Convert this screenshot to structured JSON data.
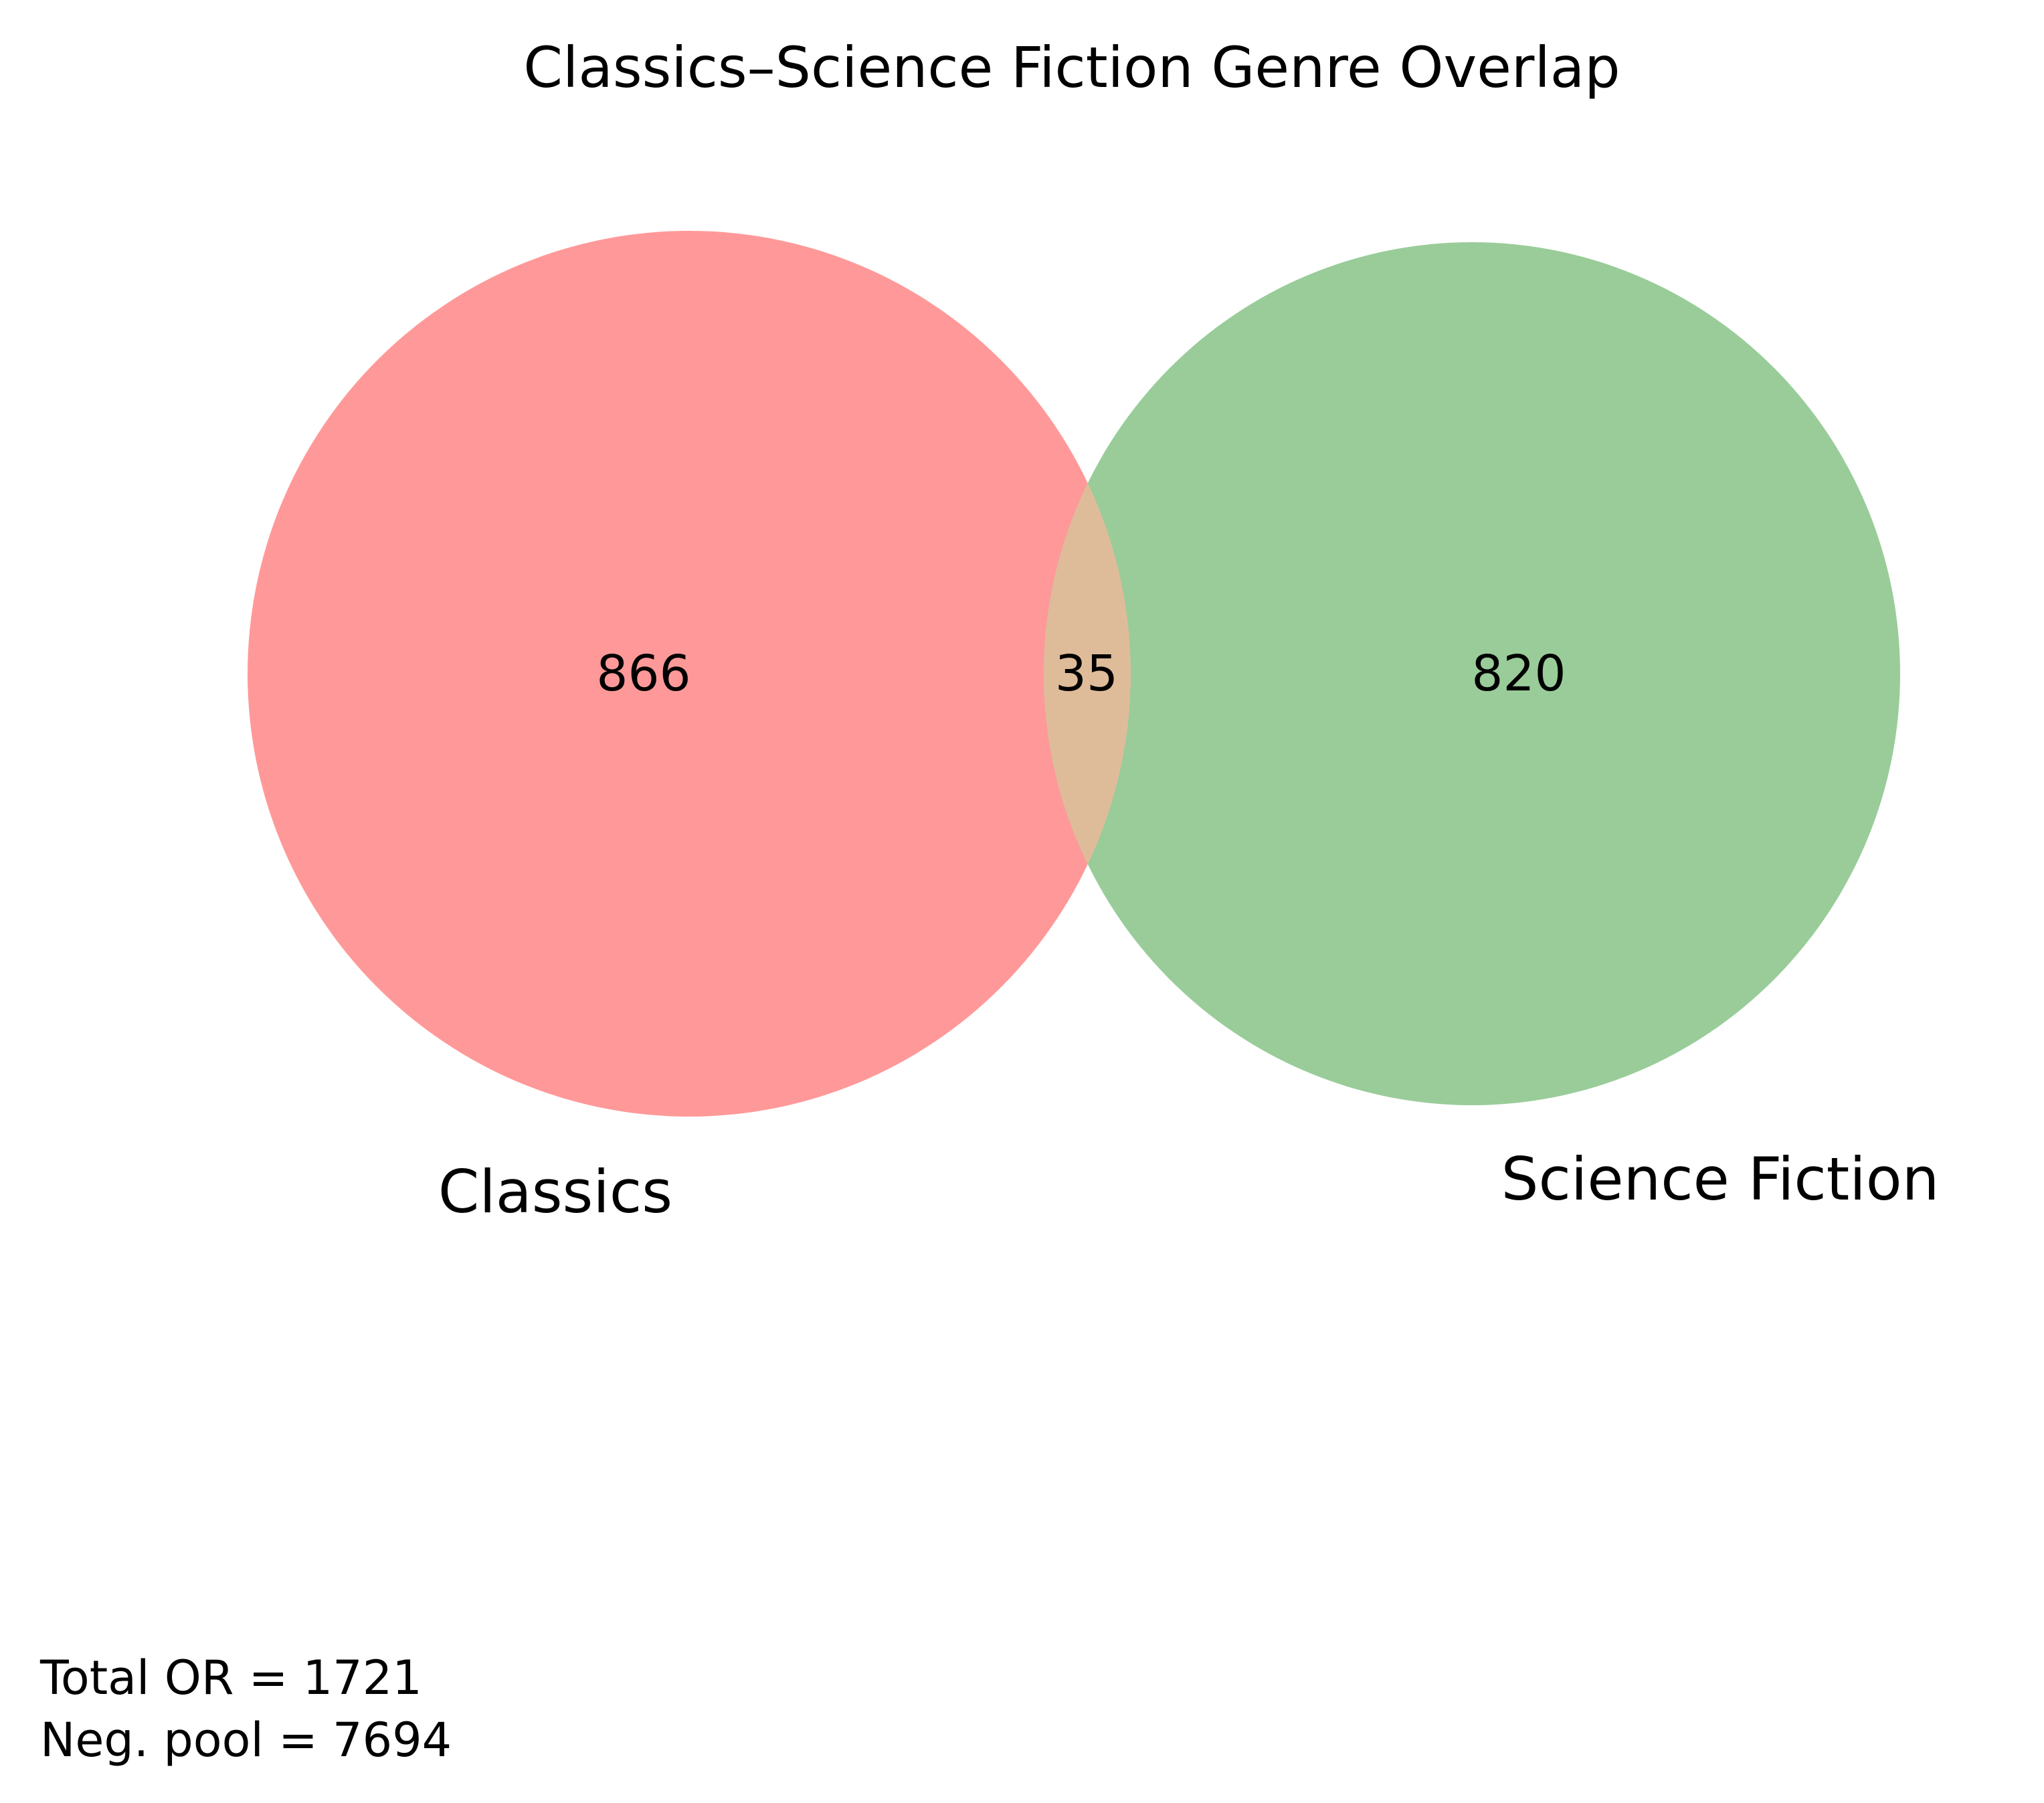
{
  "title": "Classics–Science Fiction Genre Overlap",
  "sets": [
    {
      "name": "Classics",
      "only_count": "866",
      "color": "#ff9999"
    },
    {
      "name": "Science Fiction",
      "only_count": "820",
      "color": "#99cc99"
    }
  ],
  "intersection": {
    "count": "35",
    "color": "#dfbc99"
  },
  "notes": {
    "total": "Total OR = 1721",
    "neg_pool": "Neg. pool = 7694"
  }
}
